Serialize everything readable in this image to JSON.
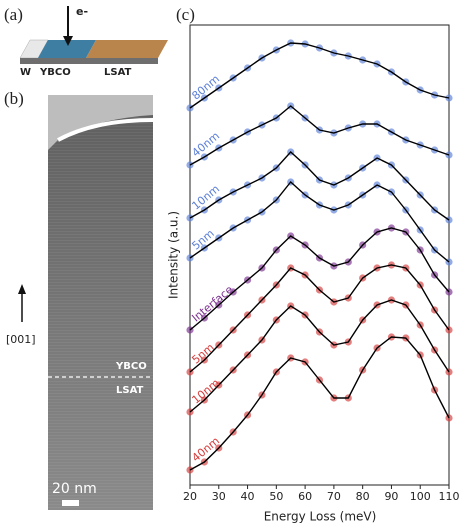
{
  "panels": {
    "a": {
      "label": "(a)",
      "beam": "e-",
      "layers": [
        "W",
        "YBCO",
        "LSAT"
      ]
    },
    "b": {
      "label": "(b)",
      "direction": "[001]",
      "upper_layer": "YBCO",
      "lower_layer": "LSAT",
      "scale_bar": "20 nm"
    },
    "c": {
      "label": "(c)"
    }
  },
  "chart_data": {
    "type": "line",
    "xlabel": "Energy Loss (meV)",
    "ylabel": "Intensity (a.u.)",
    "xlim": [
      20,
      110
    ],
    "xticks": [
      20,
      30,
      40,
      50,
      60,
      70,
      80,
      90,
      100,
      110
    ],
    "ylim": [
      0,
      460
    ],
    "line_color": "#000000",
    "x": [
      20,
      25,
      30,
      35,
      40,
      45,
      50,
      55,
      60,
      65,
      70,
      75,
      80,
      85,
      90,
      95,
      100,
      105,
      110
    ],
    "series": [
      {
        "name": "80nm",
        "color": "#5b7fd8",
        "values": [
          377,
          387,
          397,
          407,
          417,
          427,
          435,
          442,
          441,
          437,
          432,
          429,
          425,
          421,
          413,
          403,
          395,
          390,
          387
        ]
      },
      {
        "name": "40nm",
        "color": "#5b7fd8",
        "values": [
          320,
          328,
          337,
          345,
          353,
          360,
          367,
          379,
          367,
          355,
          352,
          357,
          361,
          361,
          353,
          345,
          340,
          335,
          330
        ]
      },
      {
        "name": "10nm",
        "color": "#5b7fd8",
        "values": [
          267,
          275,
          285,
          293,
          300,
          307,
          317,
          333,
          320,
          305,
          300,
          307,
          317,
          327,
          320,
          305,
          290,
          275,
          265
        ]
      },
      {
        "name": "5nm",
        "color": "#5b7fd8",
        "values": [
          227,
          237,
          247,
          257,
          265,
          273,
          285,
          303,
          290,
          280,
          275,
          280,
          290,
          300,
          293,
          275,
          255,
          235,
          223
        ]
      },
      {
        "name": "Interface",
        "color": "#7a2e8e",
        "values": [
          155,
          167,
          180,
          193,
          205,
          217,
          235,
          249,
          240,
          227,
          219,
          223,
          240,
          253,
          257,
          253,
          235,
          210,
          193
        ]
      },
      {
        "name": "5nm",
        "color": "#d63b3b",
        "values": [
          113,
          125,
          140,
          155,
          170,
          185,
          200,
          217,
          210,
          195,
          183,
          187,
          207,
          217,
          220,
          217,
          200,
          175,
          155
        ]
      },
      {
        "name": "10nm",
        "color": "#d63b3b",
        "values": [
          73,
          85,
          100,
          115,
          130,
          145,
          165,
          179,
          170,
          153,
          140,
          143,
          165,
          180,
          185,
          180,
          160,
          135,
          113
        ]
      },
      {
        "name": "40nm",
        "color": "#d63b3b",
        "values": [
          15,
          23,
          37,
          53,
          70,
          90,
          113,
          127,
          123,
          105,
          87,
          87,
          115,
          137,
          148,
          147,
          130,
          95,
          67
        ]
      }
    ]
  }
}
